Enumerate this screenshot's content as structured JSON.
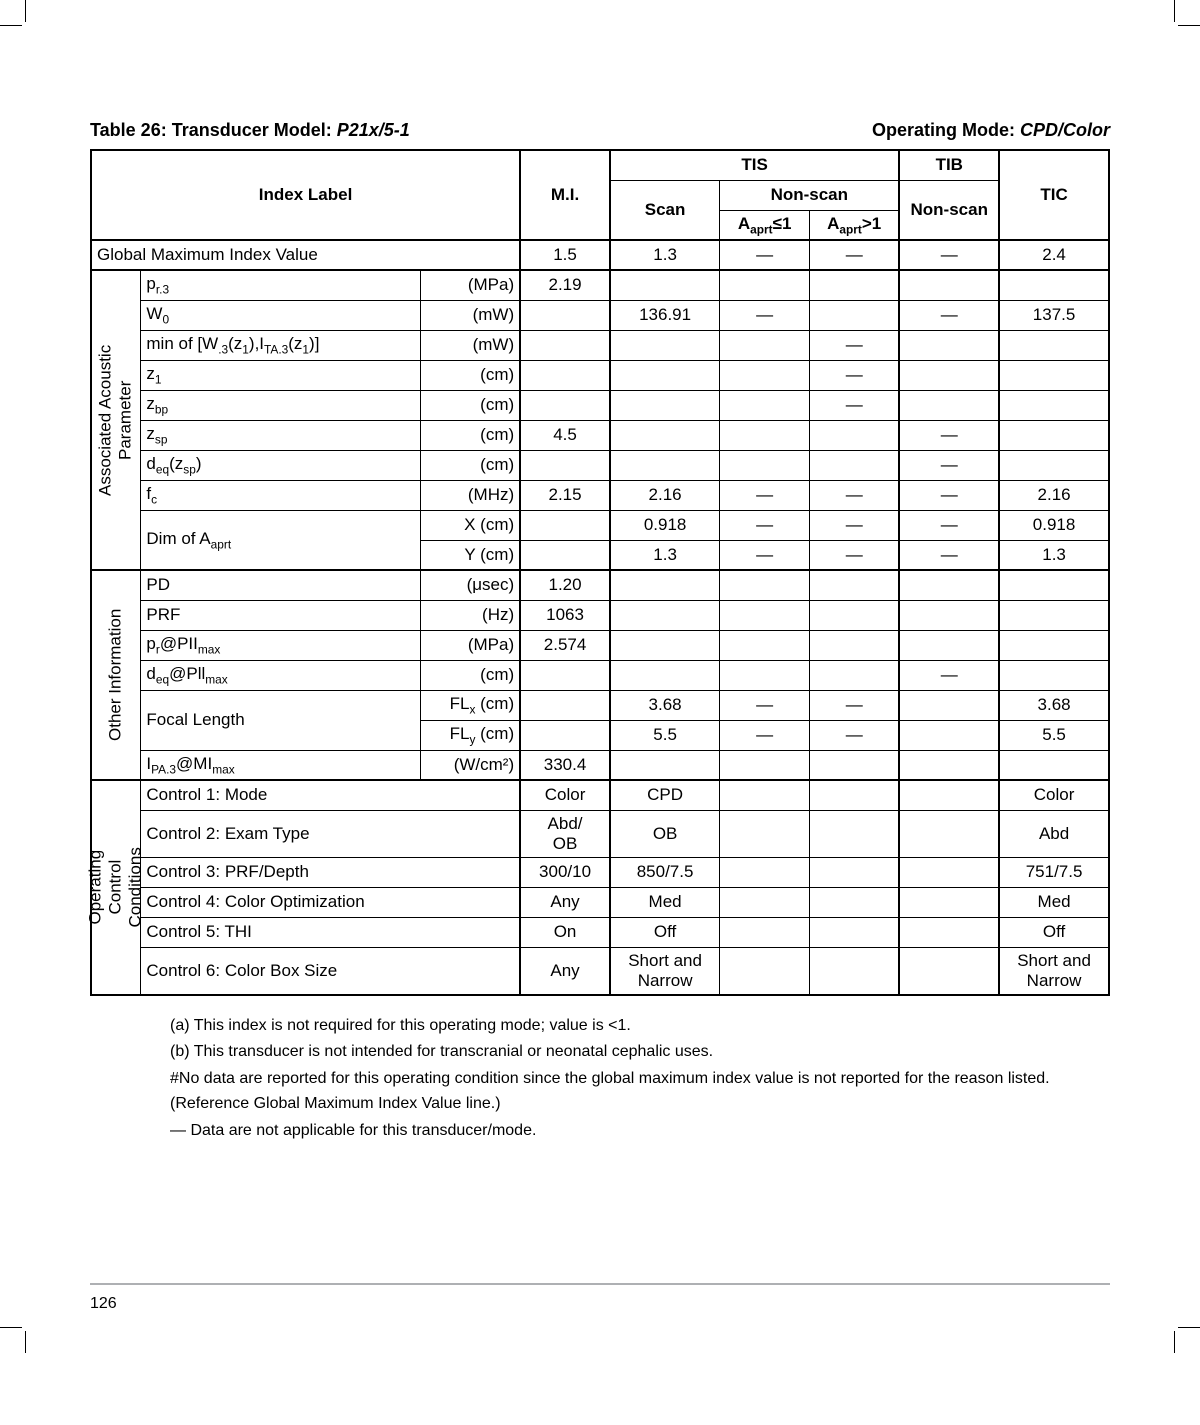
{
  "title": {
    "left_prefix": "Table 26: Transducer Model: ",
    "left_model": "P21x/5-1",
    "right_prefix": "Operating Mode: ",
    "right_mode": "CPD/Color"
  },
  "header": {
    "index_label": "Index Label",
    "mi": "M.I.",
    "tis": "TIS",
    "tib": "TIB",
    "tic": "TIC",
    "scan": "Scan",
    "nonscan": "Non-scan",
    "nonscan2": "Non-scan",
    "aaprt_le1": "A<sub>aprt</sub>≤1",
    "aaprt_gt1": "A<sub>aprt</sub>>1",
    "gmiv": "Global Maximum Index Value"
  },
  "gmiv_row": {
    "mi": "1.5",
    "scan": "1.3",
    "ns1": "—",
    "ns2": "—",
    "tib": "—",
    "tic": "2.4"
  },
  "sections": {
    "aap_label": "Associated Acoustic\nParameter",
    "oi_label": "Other Information",
    "occ_label": "Operating\nControl\nConditions"
  },
  "aap": {
    "pr3": {
      "label": "p<sub>r.3</sub>",
      "unit": "(MPa)",
      "mi": "2.19"
    },
    "w0": {
      "label": "W<sub>0</sub>",
      "unit": "(mW)",
      "scan": "136.91",
      "ns1": "—",
      "tib": "—",
      "tic": "137.5"
    },
    "minw": {
      "label": "min of [W<sub>.3</sub>(z<sub>1</sub>),I<sub>TA.3</sub>(z<sub>1</sub>)]",
      "unit": "(mW)",
      "ns2": "—"
    },
    "z1": {
      "label": "z<sub>1</sub>",
      "unit": "(cm)",
      "ns2": "—"
    },
    "zbp": {
      "label": "z<sub>bp</sub>",
      "unit": "(cm)",
      "ns2": "—"
    },
    "zsp": {
      "label": "z<sub>sp</sub>",
      "unit": "(cm)",
      "mi": "4.5",
      "tib": "—"
    },
    "deq": {
      "label": "d<sub>eq</sub>(z<sub>sp</sub>)",
      "unit": "(cm)",
      "tib": "—"
    },
    "fc": {
      "label": "f<sub>c</sub>",
      "unit": "(MHz)",
      "mi": "2.15",
      "scan": "2.16",
      "ns1": "—",
      "ns2": "—",
      "tib": "—",
      "tic": "2.16"
    },
    "dimx": {
      "label": "Dim of A<sub>aprt</sub>",
      "xu": "X   (cm)",
      "scan": "0.918",
      "ns1": "—",
      "ns2": "—",
      "tib": "—",
      "tic": "0.918"
    },
    "dimy": {
      "yu": "Y   (cm)",
      "scan": "1.3",
      "ns1": "—",
      "ns2": "—",
      "tib": "—",
      "tic": "1.3"
    }
  },
  "oi": {
    "pd": {
      "label": "PD",
      "unit": "(μsec)",
      "mi": "1.20"
    },
    "prf": {
      "label": "PRF",
      "unit": "(Hz)",
      "mi": "1063"
    },
    "prpii": {
      "label": "p<sub>r</sub>@PII<sub>max</sub>",
      "unit": "(MPa)",
      "mi": "2.574"
    },
    "deqp": {
      "label": "d<sub>eq</sub>@Pll<sub>max</sub>",
      "unit": "(cm)",
      "tib": "—"
    },
    "fl": {
      "label": "Focal Length",
      "flx": "FL<sub>x</sub> (cm)",
      "scan": "3.68",
      "ns1": "—",
      "ns2": "—",
      "tic": "3.68"
    },
    "fly": {
      "fly": "FL<sub>y</sub> (cm)",
      "scan": "5.5",
      "ns1": "—",
      "ns2": "—",
      "tic": "5.5"
    },
    "ipa": {
      "label": "I<sub>PA.3</sub>@MI<sub>max</sub>",
      "unit": "(W/cm²)",
      "mi": "330.4"
    }
  },
  "occ": {
    "c1": {
      "label": "Control 1: Mode",
      "mi": "Color",
      "scan": "CPD",
      "tic": "Color"
    },
    "c2": {
      "label": "Control 2: Exam Type",
      "mi": "Abd/\nOB",
      "scan": "OB",
      "tic": "Abd"
    },
    "c3": {
      "label": "Control 3: PRF/Depth",
      "mi": "300/10",
      "scan": "850/7.5",
      "tic": "751/7.5"
    },
    "c4": {
      "label": "Control 4: Color Optimization",
      "mi": "Any",
      "scan": "Med",
      "tic": "Med"
    },
    "c5": {
      "label": "Control 5: THI",
      "mi": "On",
      "scan": "Off",
      "tic": "Off"
    },
    "c6": {
      "label": "Control 6: Color Box Size",
      "mi": "Any",
      "scan": "Short and\nNarrow",
      "tic": "Short and\nNarrow"
    }
  },
  "notes": {
    "a": "(a) This index is not required for this operating mode; value is <1.",
    "b": "(b) This transducer is not intended for transcranial or neonatal cephalic uses.",
    "c": "#No data are reported for this operating condition since the global maximum index value is not reported for the reason listed. (Reference Global Maximum Index Value line.)",
    "d": "— Data are not applicable for this transducer/mode."
  },
  "page": "126",
  "colors": {
    "text": "#000000",
    "bg": "#ffffff",
    "rule": "#aeb0b3"
  }
}
